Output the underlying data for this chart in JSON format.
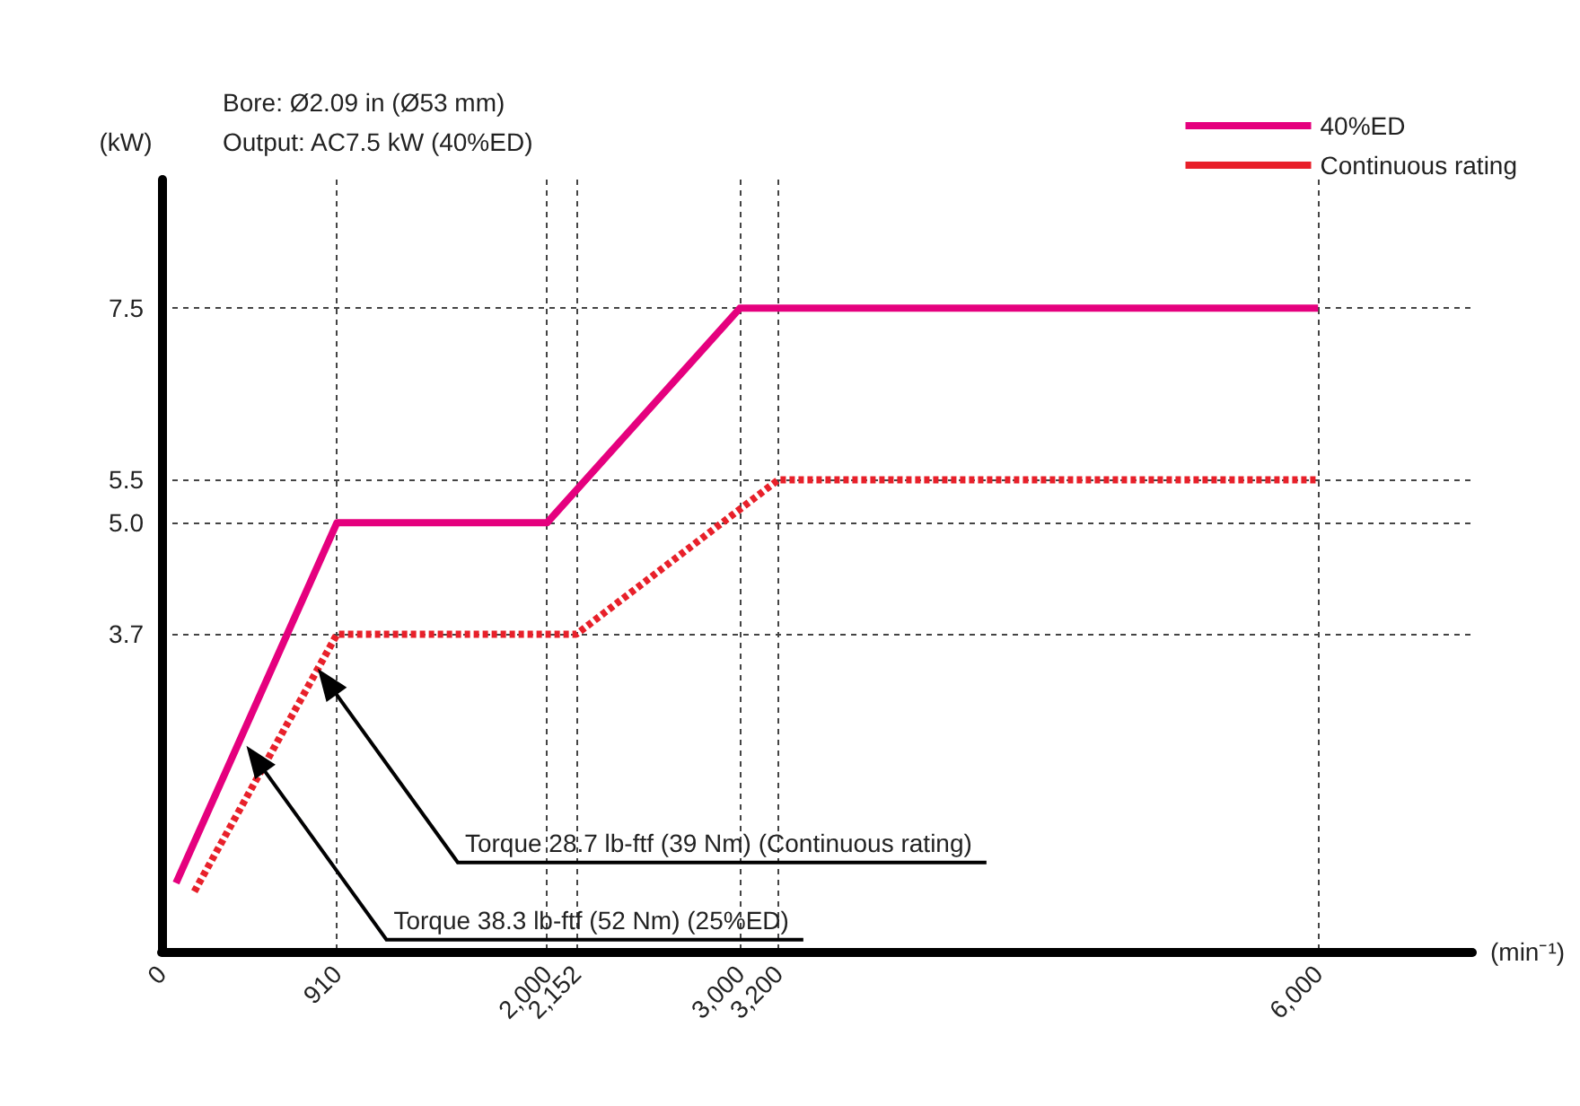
{
  "chart_data": {
    "type": "line",
    "xlabel": "(min⁻¹)",
    "ylabel": "(kW)",
    "series": [
      {
        "name": "40%ED",
        "color": "#e5007e",
        "line_style": "solid",
        "x": [
          75,
          910,
          2000,
          3000,
          6000
        ],
        "values": [
          0.8,
          5.0,
          5.0,
          7.5,
          7.5
        ]
      },
      {
        "name": "Continuous rating",
        "color": "#e8202a",
        "line_style": "dotted",
        "x": [
          170,
          910,
          2152,
          3200,
          6000
        ],
        "values": [
          0.7,
          3.7,
          3.7,
          5.5,
          5.5
        ]
      }
    ],
    "xlim": [
      0,
      6800
    ],
    "ylim": [
      0,
      9
    ],
    "xticks": [
      0,
      910,
      {
        "value": 2000,
        "label": "2,000"
      },
      {
        "value": 2152,
        "label": "2,152"
      },
      {
        "value": 3000,
        "label": "3,000"
      },
      {
        "value": 3200,
        "label": "3,200"
      },
      {
        "value": 6000,
        "label": "6,000"
      }
    ],
    "yticks": [
      3.7,
      {
        "value": 5,
        "label": "5.0"
      },
      5.5,
      7.5
    ],
    "grid": true,
    "legend": "top right",
    "marker": "none",
    "annotations": [
      "Bore: Ø2.09 in (Ø53 mm)",
      "Output: AC7.5 kW (40%ED)",
      {
        "text": "Torque 28.7 lb-ftf (39 Nm) (Continuous rating)",
        "x": 810,
        "y": 3.3
      },
      {
        "text": "Torque 38.3 lb-ftf (52 Nm) (25%ED)",
        "x": 440,
        "y": 2.4
      }
    ]
  }
}
